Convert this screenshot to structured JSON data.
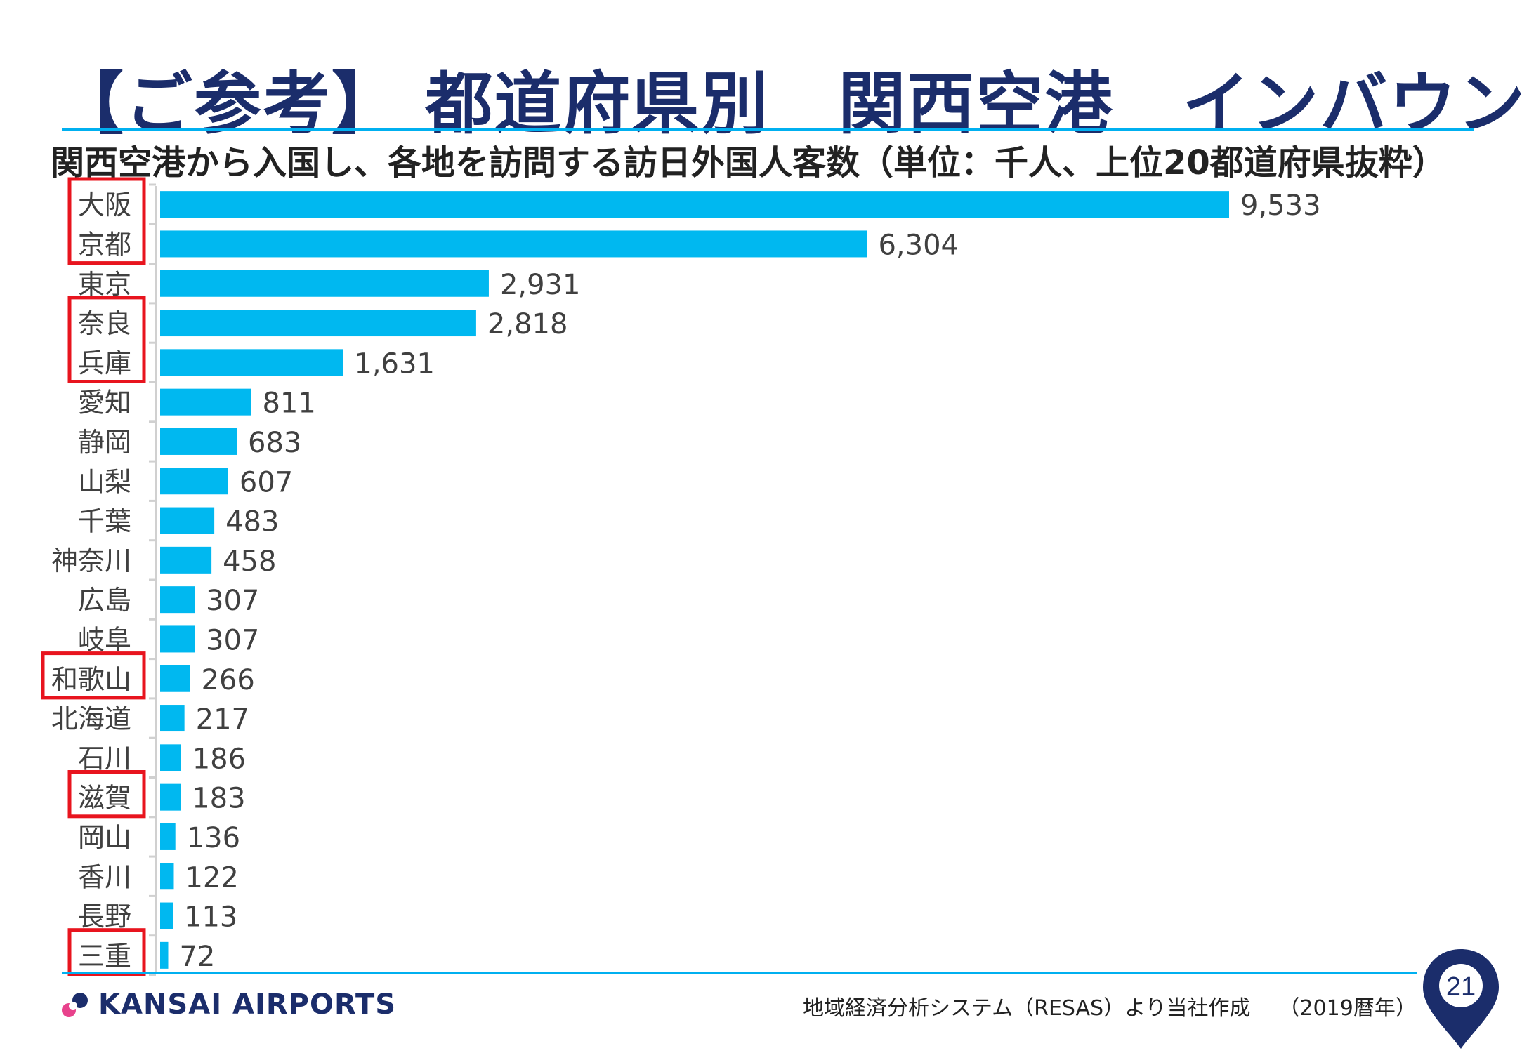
{
  "header": {
    "title": "【ご参考】 都道府県別　関西空港　インバウンド",
    "subtitle": "関西空港から入国し、各地を訪問する訪日外国人客数（単位：千人、上位20都道府県抜粋）"
  },
  "colors": {
    "bar": "#00b8f0",
    "title": "#1b2d6b",
    "rule": "#00b0f0",
    "highlight_box": "#e8141e"
  },
  "chart_data": {
    "type": "bar",
    "orientation": "horizontal",
    "categories": [
      "大阪",
      "京都",
      "東京",
      "奈良",
      "兵庫",
      "愛知",
      "静岡",
      "山梨",
      "千葉",
      "神奈川",
      "広島",
      "岐阜",
      "和歌山",
      "北海道",
      "石川",
      "滋賀",
      "岡山",
      "香川",
      "長野",
      "三重"
    ],
    "values": [
      9533,
      6304,
      2931,
      2818,
      1631,
      811,
      683,
      607,
      483,
      458,
      307,
      307,
      266,
      217,
      186,
      183,
      136,
      122,
      113,
      72
    ],
    "value_labels": [
      "9,533",
      "6,304",
      "2,931",
      "2,818",
      "1,631",
      "811",
      "683",
      "607",
      "483",
      "458",
      "307",
      "307",
      "266",
      "217",
      "186",
      "183",
      "136",
      "122",
      "113",
      "72"
    ],
    "highlighted_categories": [
      "大阪",
      "京都",
      "奈良",
      "兵庫",
      "和歌山",
      "滋賀",
      "三重"
    ],
    "xlim": [
      0,
      9533
    ],
    "grid": false,
    "legend": "none"
  },
  "footer": {
    "logo_text": "KANSAI AIRPORTS",
    "source": "地域経済分析システム（RESAS）より当社作成",
    "year": "（2019暦年）",
    "page_number": "21"
  }
}
